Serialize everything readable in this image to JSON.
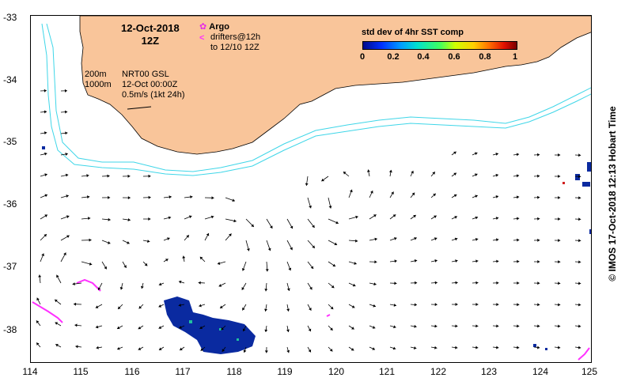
{
  "title": {
    "date": "12-Oct-2018",
    "hour": "12Z"
  },
  "legend": {
    "argo_label": "Argo",
    "drifter_line1": "drifters@12h",
    "drifter_line2": "to 12/10 12Z",
    "depth_200": "200m",
    "depth_1000": "1000m",
    "product": "NRT00 GSL",
    "analysis_time": "12-Oct 00:00Z",
    "scale": "0.5m/s (1kt 24h)"
  },
  "colorbar": {
    "title": "std dev of 4hr SST comp",
    "ticks": [
      "0",
      "0.2",
      "0.4",
      "0.6",
      "0.8",
      "1"
    ],
    "range": [
      0,
      1
    ]
  },
  "axes": {
    "x_ticks": [
      "114",
      "115",
      "116",
      "117",
      "118",
      "119",
      "120",
      "121",
      "122",
      "123",
      "124",
      "125"
    ],
    "y_ticks": [
      "-33",
      "-34",
      "-35",
      "-36",
      "-37",
      "-38"
    ],
    "lon_range": [
      114,
      125
    ],
    "lat_range": [
      -38.5,
      -33
    ]
  },
  "credit": "© IMOS 17-Oct-2018 12:13 Hobart Time",
  "colors": {
    "land": "#f9c59a",
    "isobath": "#3fd6e8",
    "argo": "#e52be5",
    "drifters": "#ff30ff",
    "sst_patch": "#0a2aa0"
  }
}
